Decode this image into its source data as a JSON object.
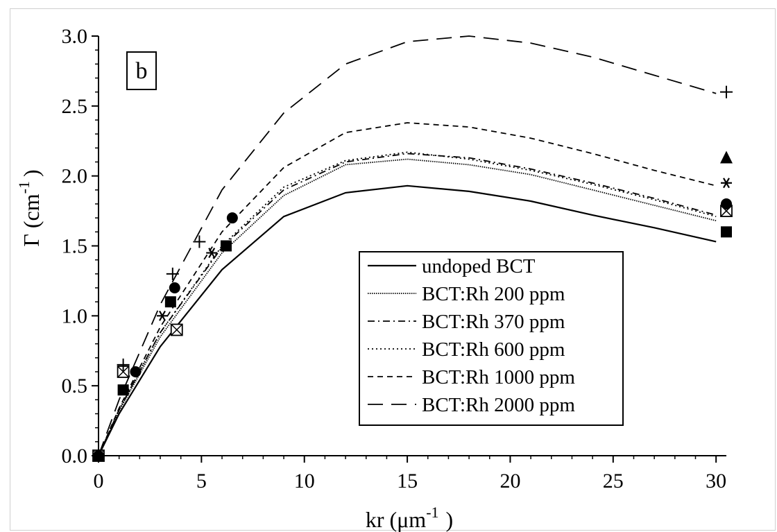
{
  "chart_data": {
    "type": "line",
    "panel_label": "b",
    "xlabel": "kr (μm",
    "xlabel_sup": "-1",
    "xlabel_close": ")",
    "ylabel": "Γ (cm",
    "ylabel_sup": "-1",
    "ylabel_close": ")",
    "xlim": [
      0,
      30.5
    ],
    "ylim": [
      0,
      3.0
    ],
    "xticks": [
      0,
      5,
      10,
      15,
      20,
      25,
      30
    ],
    "yticks": [
      0.0,
      0.5,
      1.0,
      1.5,
      2.0,
      2.5,
      3.0
    ],
    "xtick_labels": [
      "0",
      "5",
      "10",
      "15",
      "20",
      "25",
      "30"
    ],
    "ytick_labels": [
      "0.0",
      "0.5",
      "1.0",
      "1.5",
      "2.0",
      "2.5",
      "3.0"
    ],
    "legend_position": "lower-right",
    "series": [
      {
        "name": "undoped BCT",
        "dash": "solid",
        "marker": "square",
        "line": {
          "x": [
            0,
            1,
            3,
            6,
            9,
            12,
            15,
            18,
            21,
            24,
            27,
            30
          ],
          "y": [
            0,
            0.3,
            0.78,
            1.33,
            1.71,
            1.88,
            1.93,
            1.89,
            1.82,
            1.72,
            1.63,
            1.53
          ]
        },
        "points": {
          "x": [
            0,
            1.2,
            3.5,
            6.2,
            30.5
          ],
          "y": [
            0,
            0.47,
            1.1,
            1.5,
            1.6
          ]
        }
      },
      {
        "name": "BCT:Rh 200 ppm",
        "dash": "dense-dot",
        "marker": "boxed-x",
        "line": {
          "x": [
            0,
            1,
            3,
            6,
            9,
            12,
            15,
            18,
            21,
            24,
            27,
            30
          ],
          "y": [
            0,
            0.32,
            0.85,
            1.45,
            1.86,
            2.08,
            2.12,
            2.08,
            2.01,
            1.9,
            1.79,
            1.68
          ]
        },
        "points": {
          "x": [
            0,
            1.2,
            3.8,
            30.5
          ],
          "y": [
            0,
            0.6,
            0.9,
            1.75
          ]
        }
      },
      {
        "name": "BCT:Rh 370 ppm",
        "dash": "dash-dot",
        "marker": "asterisk",
        "line": {
          "x": [
            0,
            1,
            3,
            6,
            9,
            12,
            15,
            18,
            21,
            24,
            27,
            30
          ],
          "y": [
            0,
            0.33,
            0.88,
            1.49,
            1.9,
            2.1,
            2.16,
            2.13,
            2.05,
            1.95,
            1.84,
            1.72
          ]
        },
        "points": {
          "x": [
            0,
            3.1,
            5.5,
            30.5
          ],
          "y": [
            0,
            1.0,
            1.45,
            1.95
          ]
        }
      },
      {
        "name": "BCT:Rh 600 ppm",
        "dash": "dotted",
        "marker": "circle",
        "line": {
          "x": [
            0,
            1,
            3,
            6,
            9,
            12,
            15,
            18,
            21,
            24,
            27,
            30
          ],
          "y": [
            0,
            0.33,
            0.88,
            1.5,
            1.92,
            2.11,
            2.17,
            2.12,
            2.04,
            1.94,
            1.83,
            1.71
          ]
        },
        "points": {
          "x": [
            0,
            1.8,
            3.7,
            6.5,
            30.5
          ],
          "y": [
            0,
            0.6,
            1.2,
            1.7,
            1.8
          ]
        }
      },
      {
        "name": "BCT:Rh 1000 ppm",
        "dash": "dashed",
        "marker": "triangle",
        "line": {
          "x": [
            0,
            1,
            3,
            6,
            9,
            12,
            15,
            18,
            21,
            24,
            27,
            30
          ],
          "y": [
            0,
            0.34,
            0.92,
            1.6,
            2.06,
            2.31,
            2.38,
            2.35,
            2.27,
            2.16,
            2.04,
            1.93
          ]
        },
        "points": {
          "x": [
            0,
            30.5
          ],
          "y": [
            0,
            2.13
          ]
        }
      },
      {
        "name": "BCT:Rh 2000 ppm",
        "dash": "long-dash",
        "marker": "plus",
        "line": {
          "x": [
            0,
            1,
            3,
            6,
            9,
            12,
            15,
            18,
            21,
            24,
            27,
            30
          ],
          "y": [
            0,
            0.4,
            1.08,
            1.9,
            2.45,
            2.8,
            2.96,
            3.0,
            2.95,
            2.85,
            2.72,
            2.59
          ]
        },
        "points": {
          "x": [
            0,
            1.2,
            3.6,
            4.9,
            30.5
          ],
          "y": [
            0,
            0.65,
            1.3,
            1.53,
            2.6
          ]
        }
      }
    ]
  }
}
